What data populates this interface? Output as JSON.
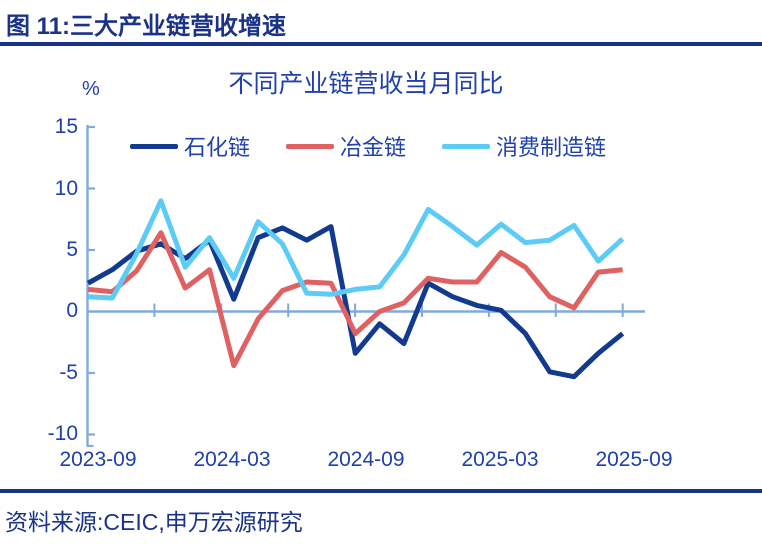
{
  "header": {
    "title": "图 11:三大产业链营收增速"
  },
  "chart": {
    "title": "不同产业链营收当月同比",
    "unit_label": "%",
    "y_ticks": [
      "15",
      "10",
      "5",
      "0",
      "-5",
      "-10"
    ],
    "x_labels": [
      "2023-09",
      "2024-03",
      "2024-09",
      "2025-03",
      "2025-09"
    ],
    "legend": [
      {
        "label": "石化链",
        "color": "#123a8e"
      },
      {
        "label": "冶金链",
        "color": "#e06161"
      },
      {
        "label": "消费制造链",
        "color": "#5ccbf5"
      }
    ]
  },
  "chart_data": {
    "type": "line",
    "title": "不同产业链营收当月同比",
    "ylabel": "%",
    "ylim": [
      -10,
      15
    ],
    "grid": false,
    "legend_position": "top",
    "x": [
      "2023-09",
      "2023-10",
      "2023-11",
      "2023-12",
      "2024-02",
      "2024-03",
      "2024-04",
      "2024-05",
      "2024-06",
      "2024-07",
      "2024-08",
      "2024-09",
      "2024-10",
      "2024-11",
      "2024-12",
      "2025-02",
      "2025-03",
      "2025-04",
      "2025-05",
      "2025-06",
      "2025-07",
      "2025-08",
      "2025-09"
    ],
    "series": [
      {
        "name": "石化链",
        "color": "#123a8e",
        "values": [
          2.3,
          3.4,
          4.9,
          5.5,
          4.3,
          5.8,
          1.0,
          6.0,
          6.8,
          5.8,
          6.9,
          -3.4,
          -1.0,
          -2.6,
          2.3,
          1.2,
          0.5,
          0.1,
          -1.8,
          -4.9,
          -5.3,
          -3.4,
          -1.8
        ]
      },
      {
        "name": "冶金链",
        "color": "#e06161",
        "values": [
          1.8,
          1.6,
          3.3,
          6.4,
          1.9,
          3.4,
          -4.4,
          -0.6,
          1.7,
          2.4,
          2.3,
          -1.8,
          0.0,
          0.7,
          2.7,
          2.4,
          2.4,
          4.8,
          3.6,
          1.2,
          0.3,
          3.2,
          3.4
        ]
      },
      {
        "name": "消费制造链",
        "color": "#5ccbf5",
        "values": [
          1.2,
          1.1,
          4.7,
          9.0,
          3.6,
          6.0,
          2.7,
          7.3,
          5.5,
          1.5,
          1.4,
          1.8,
          2.0,
          4.6,
          8.3,
          6.9,
          5.4,
          7.1,
          5.6,
          5.8,
          7.0,
          4.1,
          5.9
        ]
      }
    ]
  },
  "source": {
    "text": "资料来源:CEIC,申万宏源研究"
  },
  "colors": {
    "axis_blue": "#80aadc",
    "text_blue": "#2041ab",
    "dark_navy": "#1a3389"
  }
}
